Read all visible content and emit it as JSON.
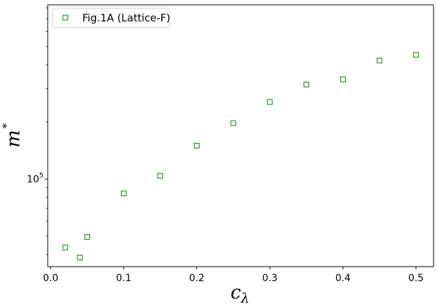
{
  "chart_data": {
    "type": "scatter",
    "xscale": "linear",
    "yscale": "log",
    "xlim": [
      -0.004,
      0.524
    ],
    "ylim": [
      34500,
      830000
    ],
    "x_ticks": [
      0.0,
      0.1,
      0.2,
      0.3,
      0.4,
      0.5
    ],
    "x_tick_labels": [
      "0.0",
      "0.1",
      "0.2",
      "0.3",
      "0.4",
      "0.5"
    ],
    "y_major_ticks": [
      100000
    ],
    "y_minor_ticks": [
      40000,
      50000,
      60000,
      70000,
      80000,
      90000,
      200000,
      300000,
      400000,
      500000,
      600000,
      700000,
      800000
    ],
    "xlabel": {
      "base": "c",
      "sub": "λ"
    },
    "ylabel": {
      "base": "m",
      "sup": "*"
    },
    "ytick_major_label": {
      "base": "10",
      "exp": "5"
    },
    "legend": "top-left",
    "series": [
      {
        "name": "Fig.1A (Lattice-F)",
        "marker": "square-open",
        "color": "#008000",
        "x": [
          0.02,
          0.04,
          0.05,
          0.1,
          0.15,
          0.2,
          0.25,
          0.3,
          0.35,
          0.4,
          0.45,
          0.5
        ],
        "y": [
          43500,
          38500,
          49500,
          84000,
          104000,
          150000,
          197000,
          255000,
          315000,
          336000,
          422000,
          452000
        ]
      }
    ]
  }
}
